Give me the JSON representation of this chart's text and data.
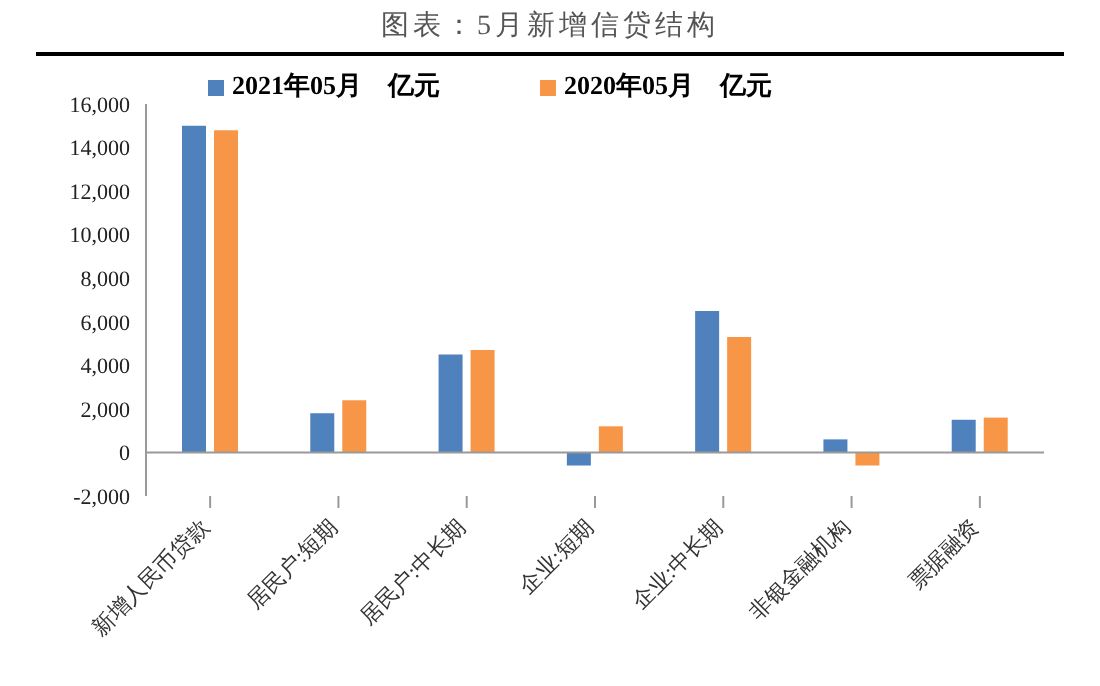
{
  "chart_data": {
    "type": "bar",
    "title": "图表：5月新增信贷结构",
    "categories": [
      "新增人民币贷款",
      "居民户:短期",
      "居民户:中长期",
      "企业:短期",
      "企业:中长期",
      "非银金融机构",
      "票据融资"
    ],
    "series": [
      {
        "name": "2021年05月　亿元",
        "color": "#4f81bd",
        "values": [
          15000,
          1800,
          4500,
          -600,
          6500,
          600,
          1500
        ]
      },
      {
        "name": "2020年05月　亿元",
        "color": "#f79646",
        "values": [
          14800,
          2400,
          4700,
          1200,
          5300,
          -600,
          1600
        ]
      }
    ],
    "ylim": [
      -2000,
      16000
    ],
    "yticks": [
      {
        "value": -2000,
        "label": "-2,000"
      },
      0,
      {
        "value": 2000,
        "label": "2,000"
      },
      {
        "value": 4000,
        "label": "4,000"
      },
      {
        "value": 6000,
        "label": "6,000"
      },
      {
        "value": 8000,
        "label": "8,000"
      },
      {
        "value": 10000,
        "label": "10,000"
      },
      {
        "value": 12000,
        "label": "12,000"
      },
      {
        "value": 14000,
        "label": "14,000"
      },
      {
        "value": 16000,
        "label": "16,000"
      }
    ],
    "ref_lines": [
      {
        "axis": "y",
        "value": 0,
        "color": "#999999"
      }
    ],
    "legend": "top"
  }
}
